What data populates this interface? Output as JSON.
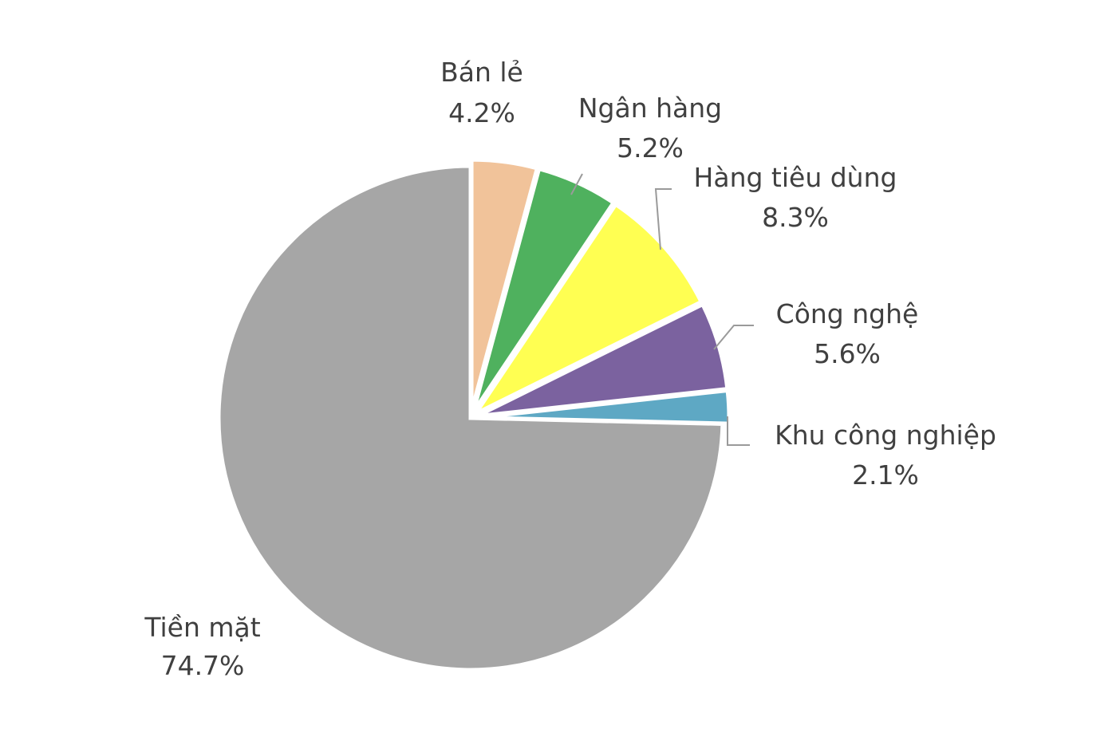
{
  "chart_data": {
    "type": "pie",
    "title": "",
    "start_angle_deg": 0,
    "direction": "clockwise",
    "slices": [
      {
        "label": "Bán lẻ",
        "value": 4.2,
        "value_label": "4.2%",
        "color": "#f1c39a",
        "exploded": true
      },
      {
        "label": "Ngân hàng",
        "value": 5.2,
        "value_label": "5.2%",
        "color": "#4fb15e",
        "exploded": true
      },
      {
        "label": "Hàng tiêu dùng",
        "value": 8.3,
        "value_label": "8.3%",
        "color": "#ffff52",
        "exploded": true
      },
      {
        "label": "Công nghệ",
        "value": 5.6,
        "value_label": "5.6%",
        "color": "#7b629f",
        "exploded": true
      },
      {
        "label": "Khu công nghiệp",
        "value": 2.1,
        "value_label": "2.1%",
        "color": "#5ea8c4",
        "exploded": true
      },
      {
        "label": "Tiền mặt",
        "value": 74.7,
        "value_label": "74.7%",
        "color": "#a6a6a6",
        "exploded": false
      }
    ],
    "legend": "none",
    "labels": "outside-with-leader-lines"
  }
}
